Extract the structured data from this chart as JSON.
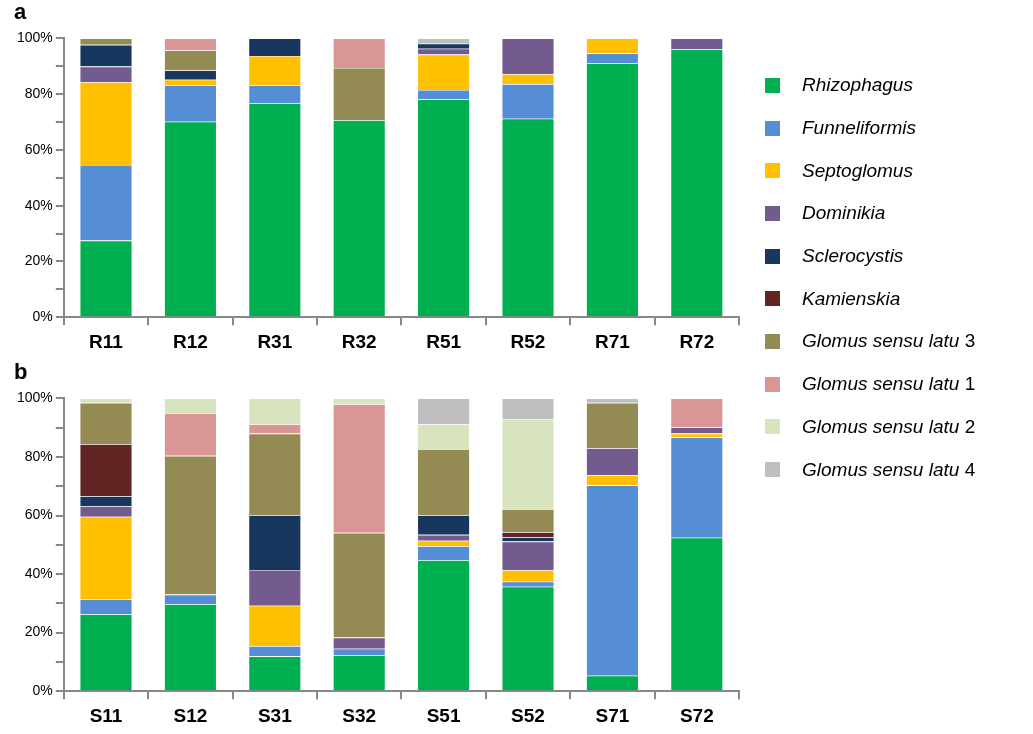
{
  "chart_data": [
    {
      "type": "bar",
      "title": "a",
      "stacked": true,
      "legend": "right",
      "grid": false,
      "categories": [
        "R11",
        "R12",
        "R31",
        "R32",
        "R51",
        "R52",
        "R71",
        "R72"
      ],
      "ylim": [
        0,
        100
      ],
      "yticks": [
        {
          "value": 0,
          "label": "0%"
        },
        {
          "value": 10,
          "label": null
        },
        {
          "value": 20,
          "label": "20%"
        },
        {
          "value": 30,
          "label": null
        },
        {
          "value": 40,
          "label": "40%"
        },
        {
          "value": 50,
          "label": null
        },
        {
          "value": 60,
          "label": "60%"
        },
        {
          "value": 70,
          "label": null
        },
        {
          "value": 80,
          "label": "80%"
        },
        {
          "value": 90,
          "label": null
        },
        {
          "value": 100,
          "label": "100%"
        }
      ],
      "series": [
        {
          "name": "Rhizophagus",
          "color": "#00b050",
          "values": [
            27.5,
            70.1,
            76.8,
            70.7,
            78.1,
            71.2,
            91.1,
            96.1
          ]
        },
        {
          "name": "Funneliformis",
          "color": "#558ed5",
          "values": [
            27.1,
            13.1,
            6.4,
            0,
            3.4,
            12.4,
            3.5,
            0
          ]
        },
        {
          "name": "Septoglomus",
          "color": "#ffc000",
          "values": [
            29.7,
            2.0,
            10.5,
            0,
            12.7,
            3.6,
            5.4,
            0
          ]
        },
        {
          "name": "Dominikia",
          "color": "#735a8f",
          "values": [
            5.6,
            0,
            0,
            0,
            2.1,
            12.8,
            0,
            3.9
          ]
        },
        {
          "name": "Sclerocystis",
          "color": "#17375e",
          "values": [
            7.8,
            3.3,
            6.3,
            0,
            1.8,
            0,
            0,
            0
          ]
        },
        {
          "name": "Kamienskia",
          "color": "#632523",
          "values": [
            0,
            0,
            0,
            0,
            0,
            0,
            0,
            0
          ]
        },
        {
          "name": "Glomus sensu latu 3",
          "color": "#948a54",
          "values": [
            2.3,
            7.2,
            0,
            18.7,
            0,
            0,
            0,
            0
          ]
        },
        {
          "name": "Glomus sensu latu 1",
          "color": "#d99694",
          "values": [
            0,
            4.3,
            0,
            10.6,
            0,
            0,
            0,
            0
          ]
        },
        {
          "name": "Glomus sensu latu 2",
          "color": "#d7e4bd",
          "values": [
            0,
            0,
            0,
            0,
            0,
            0,
            0,
            0
          ]
        },
        {
          "name": "Glomus sensu latu 4",
          "color": "#bfbfbf",
          "values": [
            0,
            0,
            0,
            0,
            1.9,
            0,
            0,
            0
          ]
        }
      ]
    },
    {
      "type": "bar",
      "title": "b",
      "stacked": true,
      "grid": false,
      "categories": [
        "S11",
        "S12",
        "S31",
        "S32",
        "S51",
        "S52",
        "S71",
        "S72"
      ],
      "ylim": [
        0,
        100
      ],
      "yticks": [
        {
          "value": 0,
          "label": "0%"
        },
        {
          "value": 10,
          "label": null
        },
        {
          "value": 20,
          "label": "20%"
        },
        {
          "value": 30,
          "label": null
        },
        {
          "value": 40,
          "label": "40%"
        },
        {
          "value": 50,
          "label": null
        },
        {
          "value": 60,
          "label": "60%"
        },
        {
          "value": 70,
          "label": null
        },
        {
          "value": 80,
          "label": "80%"
        },
        {
          "value": 90,
          "label": null
        },
        {
          "value": 100,
          "label": "100%"
        }
      ],
      "series": [
        {
          "color": "#00b050",
          "values": [
            26.2,
            29.7,
            11.9,
            12.3,
            44.8,
            35.7,
            5.3,
            52.4
          ]
        },
        {
          "color": "#558ed5",
          "values": [
            5.2,
            3.3,
            3.5,
            2.2,
            4.7,
            1.7,
            65.0,
            34.3
          ]
        },
        {
          "color": "#ffc000",
          "values": [
            28.2,
            0,
            13.8,
            0,
            1.9,
            3.9,
            3.5,
            1.3
          ]
        },
        {
          "color": "#735a8f",
          "values": [
            3.6,
            0,
            12.2,
            3.8,
            2.0,
            9.8,
            9.2,
            2.1
          ]
        },
        {
          "color": "#17375e",
          "values": [
            3.4,
            0,
            18.7,
            0,
            6.7,
            1.5,
            0,
            0
          ]
        },
        {
          "color": "#632523",
          "values": [
            17.8,
            0,
            0,
            0,
            0,
            1.7,
            0,
            0
          ]
        },
        {
          "color": "#948a54",
          "values": [
            14.1,
            47.4,
            27.9,
            35.8,
            22.6,
            7.9,
            15.5,
            0
          ]
        },
        {
          "color": "#d99694",
          "values": [
            0,
            14.6,
            3.2,
            43.9,
            0,
            0,
            0,
            9.9
          ]
        },
        {
          "color": "#d7e4bd",
          "values": [
            1.5,
            5.0,
            8.8,
            2.0,
            8.5,
            30.8,
            0,
            0
          ]
        },
        {
          "color": "#bfbfbf",
          "values": [
            0,
            0,
            0,
            0,
            8.8,
            7.0,
            1.5,
            0
          ]
        }
      ]
    }
  ]
}
